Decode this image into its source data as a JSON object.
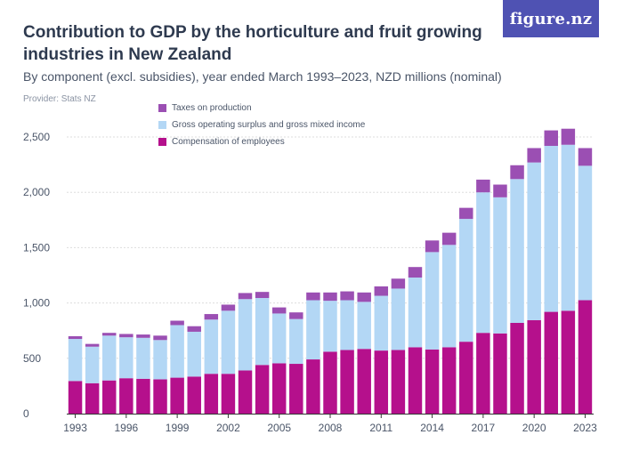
{
  "header": {
    "title": "Contribution to GDP by the horticulture and fruit growing industries in New Zealand",
    "subtitle": "By component (excl. subsidies), year ended March 1993–2023, NZD millions (nominal)",
    "provider": "Provider: Stats NZ",
    "logo": "figure.nz"
  },
  "colors": {
    "taxes": "#9b4fb3",
    "gos": "#b3d7f5",
    "compensation": "#b5108c",
    "axis": "#333333",
    "grid": "#dddddd"
  },
  "chart_data": {
    "type": "bar",
    "stacked": true,
    "title": "Contribution to GDP by the horticulture and fruit growing industries in New Zealand",
    "subtitle": "By component (excl. subsidies), year ended March 1993–2023, NZD millions (nominal)",
    "xlabel": "",
    "ylabel": "",
    "ylim": [
      0,
      2600
    ],
    "yticks": [
      0,
      500,
      1000,
      1500,
      2000,
      2500
    ],
    "ytick_labels": [
      "0",
      "500",
      "1,000",
      "1,500",
      "2,000",
      "2,500"
    ],
    "xtick_labels": [
      "1993",
      "1996",
      "1999",
      "2002",
      "2005",
      "2008",
      "2011",
      "2014",
      "2017",
      "2020",
      "2023"
    ],
    "grid": true,
    "legend_position": "top-center",
    "categories": [
      "1993",
      "1994",
      "1995",
      "1996",
      "1997",
      "1998",
      "1999",
      "2000",
      "2001",
      "2002",
      "2003",
      "2004",
      "2005",
      "2006",
      "2007",
      "2008",
      "2009",
      "2010",
      "2011",
      "2012",
      "2013",
      "2014",
      "2015",
      "2016",
      "2017",
      "2018",
      "2019",
      "2020",
      "2021",
      "2022",
      "2023"
    ],
    "series": [
      {
        "name": "Compensation of employees",
        "color": "#b5108c",
        "values": [
          295,
          275,
          300,
          320,
          315,
          310,
          325,
          335,
          360,
          360,
          390,
          440,
          455,
          450,
          490,
          560,
          575,
          585,
          570,
          575,
          600,
          580,
          600,
          650,
          730,
          725,
          820,
          845,
          920,
          930,
          1025
        ]
      },
      {
        "name": "Gross operating surplus and gross mixed income",
        "color": "#b3d7f5",
        "values": [
          380,
          330,
          405,
          370,
          370,
          355,
          475,
          405,
          490,
          570,
          645,
          605,
          450,
          405,
          535,
          460,
          450,
          425,
          495,
          555,
          630,
          880,
          925,
          1110,
          1270,
          1230,
          1300,
          1425,
          1500,
          1500,
          1215
        ]
      },
      {
        "name": "Taxes on production",
        "color": "#9b4fb3",
        "values": [
          25,
          25,
          25,
          30,
          30,
          40,
          40,
          50,
          50,
          55,
          55,
          55,
          55,
          60,
          70,
          75,
          80,
          85,
          85,
          90,
          95,
          105,
          110,
          100,
          115,
          115,
          125,
          130,
          140,
          145,
          160
        ]
      }
    ]
  }
}
